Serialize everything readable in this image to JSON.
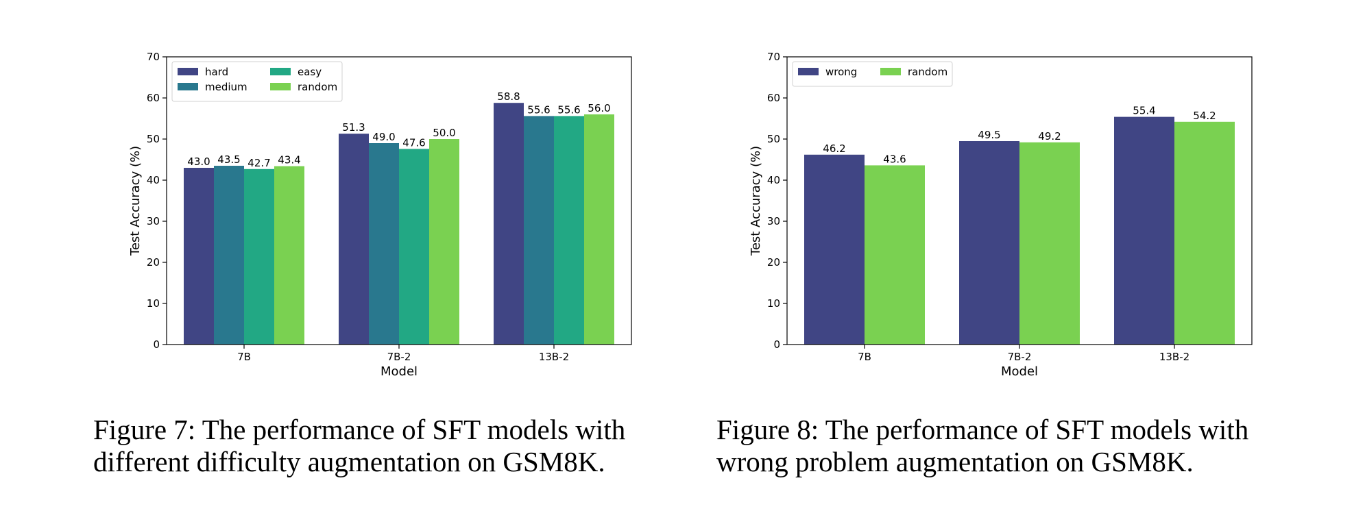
{
  "figures": [
    {
      "caption_line1": "Figure 7: The performance of SFT models with",
      "caption_line2": "different difficulty augmentation on GSM8K."
    },
    {
      "caption_line1": "Figure 8: The performance of SFT models with",
      "caption_line2": "wrong problem augmentation on GSM8K."
    }
  ],
  "chart_data": [
    {
      "type": "bar",
      "categories": [
        "7B",
        "7B-2",
        "13B-2"
      ],
      "series": [
        {
          "name": "hard",
          "color": "#404584",
          "values": [
            43.0,
            51.3,
            58.8
          ]
        },
        {
          "name": "medium",
          "color": "#29788e",
          "values": [
            43.5,
            49.0,
            55.6
          ]
        },
        {
          "name": "easy",
          "color": "#22a884",
          "values": [
            42.7,
            47.6,
            55.6
          ]
        },
        {
          "name": "random",
          "color": "#7ad151",
          "values": [
            43.4,
            50.0,
            56.0
          ]
        }
      ],
      "value_labels": [
        [
          "43.0",
          "51.3",
          "58.8"
        ],
        [
          "43.5",
          "49.0",
          "55.6"
        ],
        [
          "42.7",
          "47.6",
          "55.6"
        ],
        [
          "43.4",
          "50.0",
          "56.0"
        ]
      ],
      "xlabel": "Model",
      "ylabel": "Test Accuracy (%)",
      "ylim": [
        0,
        70
      ],
      "yticks": [
        0,
        10,
        20,
        30,
        40,
        50,
        60,
        70
      ],
      "grid": false,
      "legend": "upper-left, 2 columns"
    },
    {
      "type": "bar",
      "categories": [
        "7B",
        "7B-2",
        "13B-2"
      ],
      "series": [
        {
          "name": "wrong",
          "color": "#404584",
          "values": [
            46.2,
            49.5,
            55.4
          ]
        },
        {
          "name": "random",
          "color": "#7ad151",
          "values": [
            43.6,
            49.2,
            54.2
          ]
        }
      ],
      "value_labels": [
        [
          "46.2",
          "49.5",
          "55.4"
        ],
        [
          "43.6",
          "49.2",
          "54.2"
        ]
      ],
      "xlabel": "Model",
      "ylabel": "Test Accuracy (%)",
      "ylim": [
        0,
        70
      ],
      "yticks": [
        0,
        10,
        20,
        30,
        40,
        50,
        60,
        70
      ],
      "grid": false,
      "legend": "upper-left, 2 columns"
    }
  ]
}
